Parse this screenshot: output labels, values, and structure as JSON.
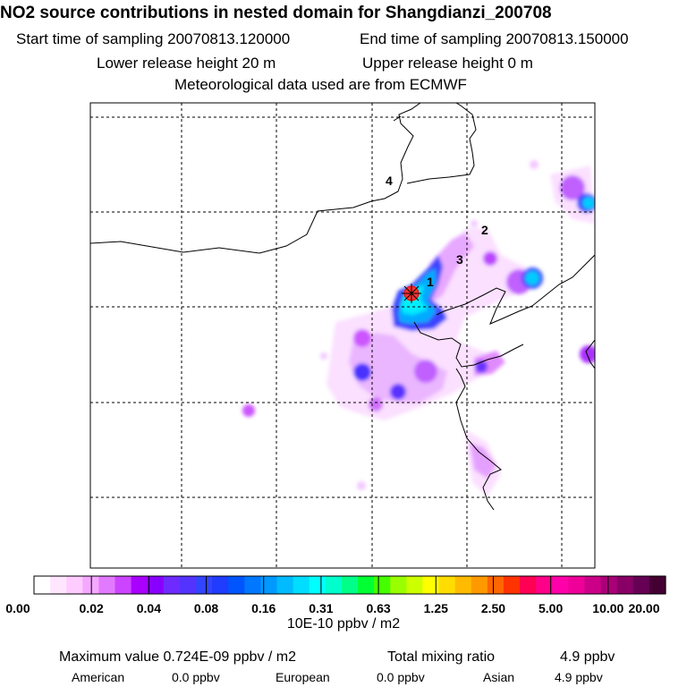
{
  "header": {
    "title": "NO2 source contributions in nested domain for Shangdianzi_200708",
    "start_label": "Start time of sampling 20070813.120000",
    "end_label": "End time of sampling 20070813.150000",
    "lower_label": "Lower release height   20 m",
    "upper_label": "Upper release height    0 m",
    "met_label": "Meteorological data used are from ECMWF"
  },
  "chart_data": {
    "type": "heatmap",
    "markers": [
      "1",
      "2",
      "3",
      "4"
    ],
    "colorbar": {
      "tick_labels": [
        "0.00",
        "0.02",
        "0.04",
        "0.08",
        "0.16",
        "0.31",
        "0.63",
        "1.25",
        "2.50",
        "5.00",
        "10.00",
        "20.00"
      ],
      "unit_label": "10E-10 ppbv / m2",
      "colors": [
        "#ffffff",
        "#ffe6ff",
        "#ffccff",
        "#f5a8ff",
        "#e27aff",
        "#cc44ff",
        "#aa00ff",
        "#8800ff",
        "#6e2bff",
        "#5533ff",
        "#3344ff",
        "#1f3cff",
        "#0055ff",
        "#0077ff",
        "#0099ff",
        "#00bbff",
        "#00ddff",
        "#00ffff",
        "#00ffcc",
        "#00ff88",
        "#00ff33",
        "#44ff00",
        "#99ff00",
        "#ccff00",
        "#ffff00",
        "#ffdd00",
        "#ffbb00",
        "#ff9900",
        "#ff6600",
        "#ff3300",
        "#ff0055",
        "#ff0088",
        "#ff00aa",
        "#ee0099",
        "#cc0088",
        "#aa0077",
        "#880066",
        "#660055",
        "#440033"
      ]
    }
  },
  "footer": {
    "max_label": "Maximum value  0.724E-09 ppbv / m2",
    "total_label": "Total mixing ratio",
    "total_value": "4.9 ppbv",
    "american_label": "American",
    "american_value": "0.0 ppbv",
    "european_label": "European",
    "european_value": "0.0 ppbv",
    "asian_label": "Asian",
    "asian_value": "4.9 ppbv"
  }
}
